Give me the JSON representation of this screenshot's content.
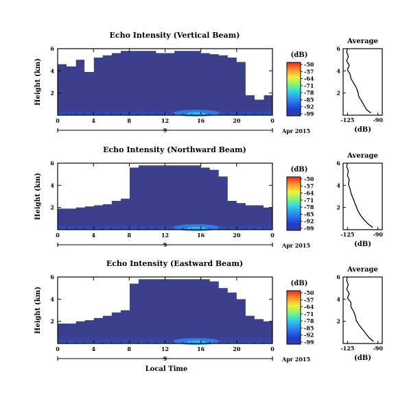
{
  "chart_data": [
    {
      "type": "heatmap",
      "title": "Echo Intensity (Vertical Beam)",
      "ylabel": "Height (km)",
      "x_ticks": [
        "0",
        "4",
        "8",
        "12",
        "16",
        "20",
        "0"
      ],
      "y_ticks": [
        "2",
        "4",
        "6"
      ],
      "xlim": [
        0,
        24
      ],
      "ylim": [
        0,
        6
      ],
      "day_label": "9",
      "date_label": "Apr 2015",
      "colorbar": {
        "label": "(dB)",
        "ticks": [
          "-50",
          "-57",
          "-64",
          "-71",
          "-78",
          "-85",
          "-92",
          "-99"
        ]
      },
      "clear_top_km": [
        4.6,
        4.4,
        5.0,
        3.9,
        5.2,
        5.4,
        5.6,
        5.8,
        5.8,
        5.8,
        5.8,
        5.6,
        5.6,
        5.8,
        5.8,
        5.8,
        5.6,
        5.5,
        5.4,
        5.2,
        4.8,
        1.8,
        1.4,
        1.8
      ],
      "profile": {
        "title": "Average",
        "xlabel": "(dB)",
        "x_ticks": [
          "-125",
          "-90"
        ],
        "xlim": [
          -130,
          -85
        ],
        "y_ticks": [
          "2",
          "4",
          "6"
        ],
        "ylim": [
          0,
          6
        ],
        "heights": [
          0.2,
          0.5,
          0.9,
          1.3,
          1.7,
          2.1,
          2.5,
          2.9,
          3.3,
          3.7,
          4.1,
          4.5,
          4.9,
          5.3,
          5.7,
          6.0
        ],
        "values": [
          -98,
          -103,
          -106,
          -109,
          -112,
          -113,
          -115,
          -118,
          -121,
          -122,
          -125,
          -123,
          -126,
          -124,
          -126,
          -125
        ]
      }
    },
    {
      "type": "heatmap",
      "title": "Echo Intensity (Northward Beam)",
      "ylabel": "Height (km)",
      "x_ticks": [
        "0",
        "4",
        "8",
        "12",
        "16",
        "20",
        "0"
      ],
      "y_ticks": [
        "2",
        "4",
        "6"
      ],
      "xlim": [
        0,
        24
      ],
      "ylim": [
        0,
        6
      ],
      "day_label": "9",
      "date_label": "Apr 2015",
      "colorbar": {
        "label": "(dB)",
        "ticks": [
          "-50",
          "-57",
          "-64",
          "-71",
          "-78",
          "-85",
          "-92",
          "-99"
        ]
      },
      "clear_top_km": [
        1.9,
        1.9,
        2.0,
        2.1,
        2.2,
        2.3,
        2.6,
        2.8,
        5.6,
        5.8,
        5.8,
        5.8,
        5.8,
        5.8,
        5.8,
        5.8,
        5.6,
        5.4,
        4.8,
        2.6,
        2.4,
        2.2,
        2.2,
        2.0
      ],
      "profile": {
        "title": "Average",
        "xlabel": "(dB)",
        "x_ticks": [
          "-125",
          "-90"
        ],
        "xlim": [
          -130,
          -85
        ],
        "y_ticks": [
          "2",
          "4",
          "6"
        ],
        "ylim": [
          0,
          6
        ],
        "heights": [
          0.2,
          0.5,
          0.9,
          1.3,
          1.7,
          2.1,
          2.5,
          2.9,
          3.3,
          3.7,
          4.1,
          4.5,
          4.9,
          5.3,
          5.7,
          6.0
        ],
        "values": [
          -96,
          -101,
          -106,
          -110,
          -113,
          -115,
          -117,
          -119,
          -121,
          -122,
          -124,
          -123,
          -125,
          -124,
          -126,
          -125
        ]
      }
    },
    {
      "type": "heatmap",
      "title": "Echo Intensity (Eastward Beam)",
      "ylabel": "Height (km)",
      "xlabel": "Local Time",
      "x_ticks": [
        "0",
        "4",
        "8",
        "12",
        "16",
        "20",
        "0"
      ],
      "y_ticks": [
        "2",
        "4",
        "6"
      ],
      "xlim": [
        0,
        24
      ],
      "ylim": [
        0,
        6
      ],
      "day_label": "9",
      "date_label": "Apr 2015",
      "colorbar": {
        "label": "(dB)",
        "ticks": [
          "-50",
          "-57",
          "-64",
          "-71",
          "-78",
          "-85",
          "-92",
          "-99"
        ]
      },
      "clear_top_km": [
        1.8,
        1.8,
        2.0,
        2.1,
        2.3,
        2.5,
        2.8,
        3.0,
        5.4,
        5.8,
        5.8,
        5.8,
        5.8,
        5.8,
        5.8,
        5.8,
        5.8,
        5.6,
        5.0,
        4.6,
        4.0,
        2.5,
        2.2,
        2.0
      ],
      "profile": {
        "title": "Average",
        "xlabel": "(dB)",
        "x_ticks": [
          "-125",
          "-90"
        ],
        "xlim": [
          -130,
          -85
        ],
        "y_ticks": [
          "2",
          "4",
          "6"
        ],
        "ylim": [
          0,
          6
        ],
        "heights": [
          0.2,
          0.5,
          0.9,
          1.3,
          1.7,
          2.1,
          2.5,
          2.9,
          3.3,
          3.7,
          4.1,
          4.5,
          4.9,
          5.3,
          5.7,
          6.0
        ],
        "values": [
          -95,
          -100,
          -104,
          -108,
          -112,
          -115,
          -116,
          -118,
          -121,
          -121,
          -125,
          -123,
          -126,
          -124,
          -126,
          -125
        ]
      }
    }
  ]
}
